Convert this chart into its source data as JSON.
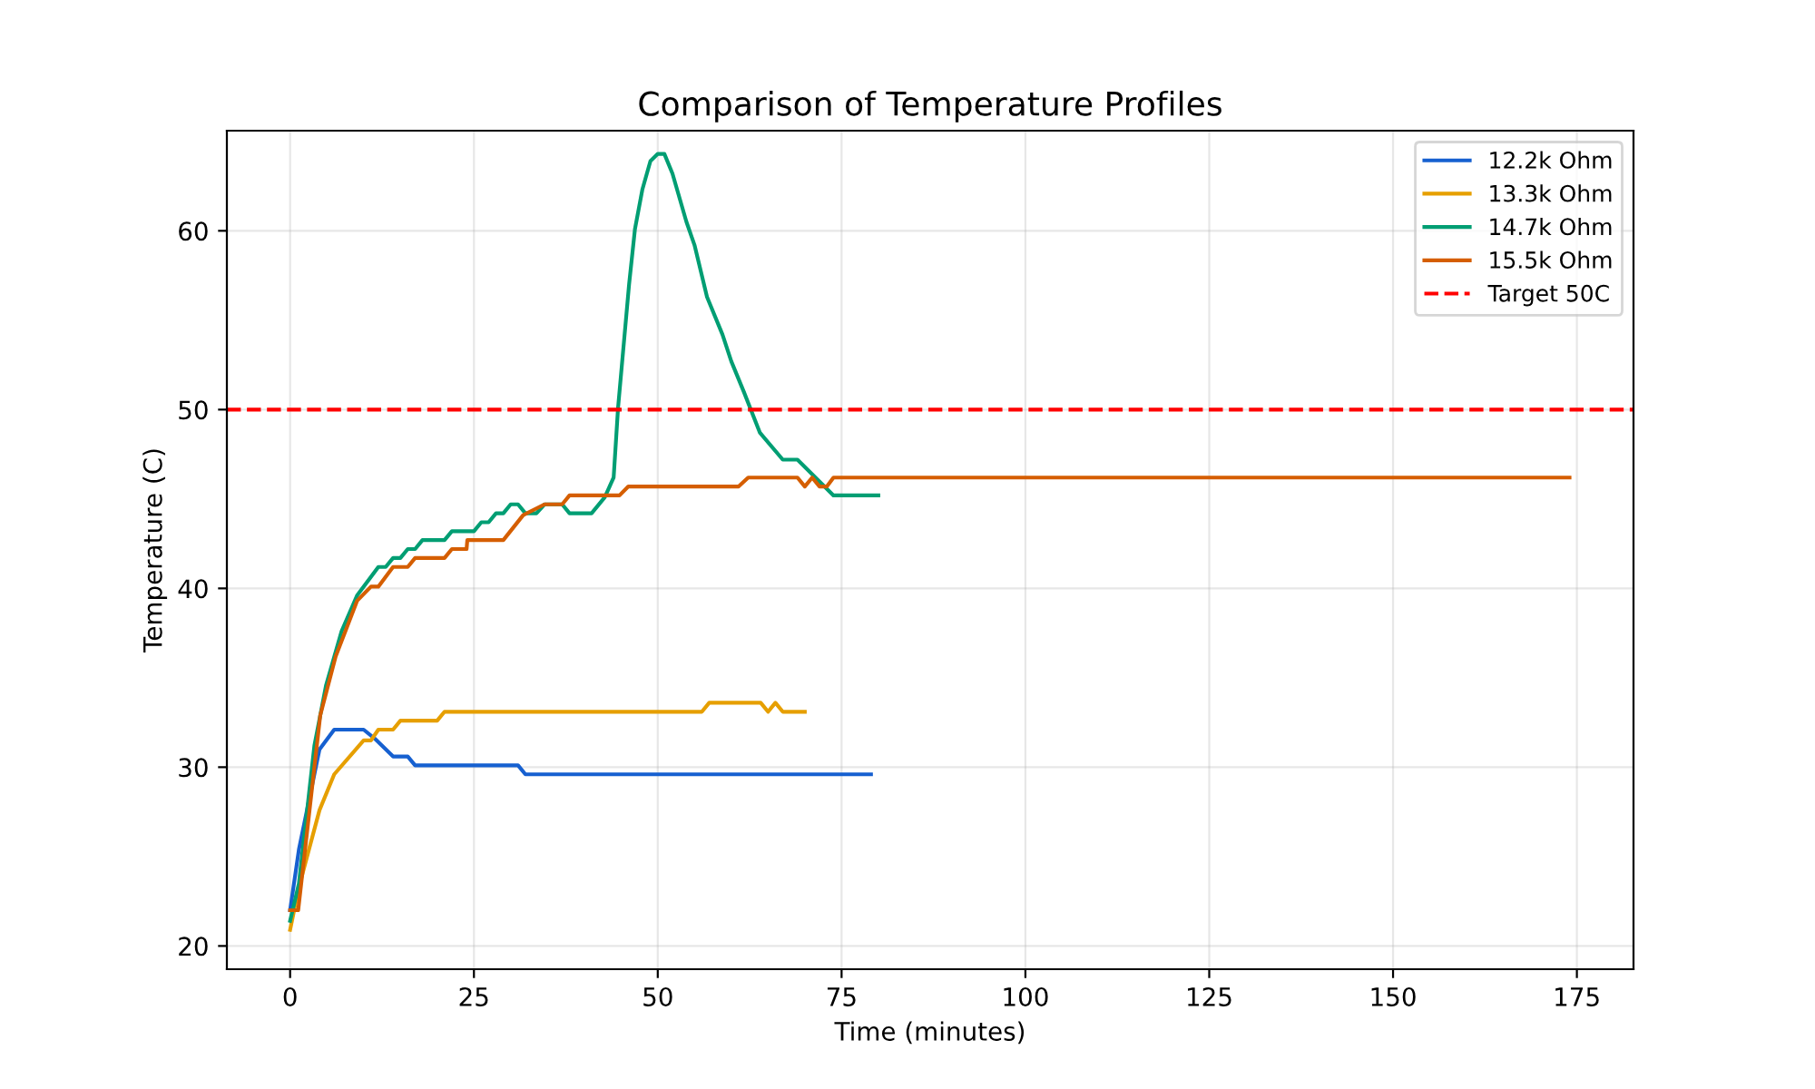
{
  "chart_data": {
    "type": "line",
    "title": "Comparison of Temperature Profiles",
    "xlabel": "Time (minutes)",
    "ylabel": "Temperature (C)",
    "xlim": [
      -8.6,
      182.7
    ],
    "ylim": [
      18.7,
      65.6
    ],
    "xticks": [
      0,
      25,
      50,
      75,
      100,
      125,
      150,
      175
    ],
    "yticks": [
      20,
      30,
      40,
      50,
      60
    ],
    "grid": true,
    "legend": "top right",
    "line_style": "solid",
    "marker": "none",
    "series": [
      {
        "name": "12.2k Ohm",
        "color": "#1660d0",
        "x": [
          0,
          1.2,
          4,
          6,
          10,
          11.5,
          14,
          16,
          17,
          31,
          32,
          79
        ],
        "values": [
          22,
          25.4,
          31,
          32.1,
          32.1,
          31.6,
          30.6,
          30.6,
          30.1,
          30.1,
          29.6,
          29.6
        ]
      },
      {
        "name": "13.3k Ohm",
        "color": "#e69f00",
        "x": [
          0,
          1.2,
          4,
          6,
          10,
          11,
          12,
          14,
          15,
          20,
          21,
          56,
          57,
          64,
          65,
          66,
          67,
          70
        ],
        "values": [
          20.9,
          23.3,
          27.6,
          29.6,
          31.5,
          31.5,
          32.1,
          32.1,
          32.6,
          32.6,
          33.1,
          33.1,
          33.6,
          33.6,
          33.1,
          33.6,
          33.1,
          33.1
        ]
      },
      {
        "name": "14.7k Ohm",
        "color": "#009e73",
        "x": [
          0,
          1.2,
          3.3,
          4.9,
          7,
          9.1,
          12,
          13,
          14,
          15,
          16,
          17,
          18,
          21,
          22,
          25,
          26,
          27,
          28,
          29,
          30,
          31,
          32,
          33.5,
          34.6,
          37,
          38,
          41,
          42.8,
          44,
          44.6,
          46.1,
          46.9,
          47.9,
          49,
          50,
          50.9,
          52,
          53.9,
          55,
          56.7,
          58.8,
          60,
          61.7,
          63.9,
          67,
          69,
          73.9,
          80
        ],
        "values": [
          21.4,
          23.5,
          31.2,
          34.6,
          37.6,
          39.6,
          41.2,
          41.2,
          41.7,
          41.7,
          42.2,
          42.2,
          42.7,
          42.7,
          43.2,
          43.2,
          43.7,
          43.7,
          44.2,
          44.2,
          44.7,
          44.7,
          44.2,
          44.2,
          44.7,
          44.7,
          44.2,
          44.2,
          45.1,
          46.2,
          50.1,
          57,
          60.1,
          62.3,
          63.9,
          64.3,
          64.3,
          63.2,
          60.5,
          59.2,
          56.3,
          54.2,
          52.7,
          51,
          48.7,
          47.2,
          47.2,
          45.2,
          45.2
        ]
      },
      {
        "name": "15.5k Ohm",
        "color": "#d55e00",
        "x": [
          0,
          1.1,
          4.1,
          6.2,
          9.1,
          11,
          12,
          14,
          16,
          17,
          21,
          22,
          24,
          24.1,
          29,
          31.7,
          34.6,
          37,
          38,
          44.8,
          46,
          61,
          62.3,
          69,
          70,
          71,
          72,
          73,
          73.9,
          174
        ],
        "values": [
          22,
          22,
          32.9,
          36.2,
          39.3,
          40.1,
          40.1,
          41.2,
          41.2,
          41.7,
          41.7,
          42.2,
          42.2,
          42.7,
          42.7,
          44.1,
          44.7,
          44.7,
          45.2,
          45.2,
          45.7,
          45.7,
          46.2,
          46.2,
          45.7,
          46.2,
          45.7,
          45.7,
          46.2,
          46.2
        ]
      }
    ],
    "ref_lines": [
      {
        "axis": "y",
        "value": 50,
        "label": "Target 50C",
        "color": "#ff0000",
        "line_style": "dashed"
      }
    ]
  }
}
